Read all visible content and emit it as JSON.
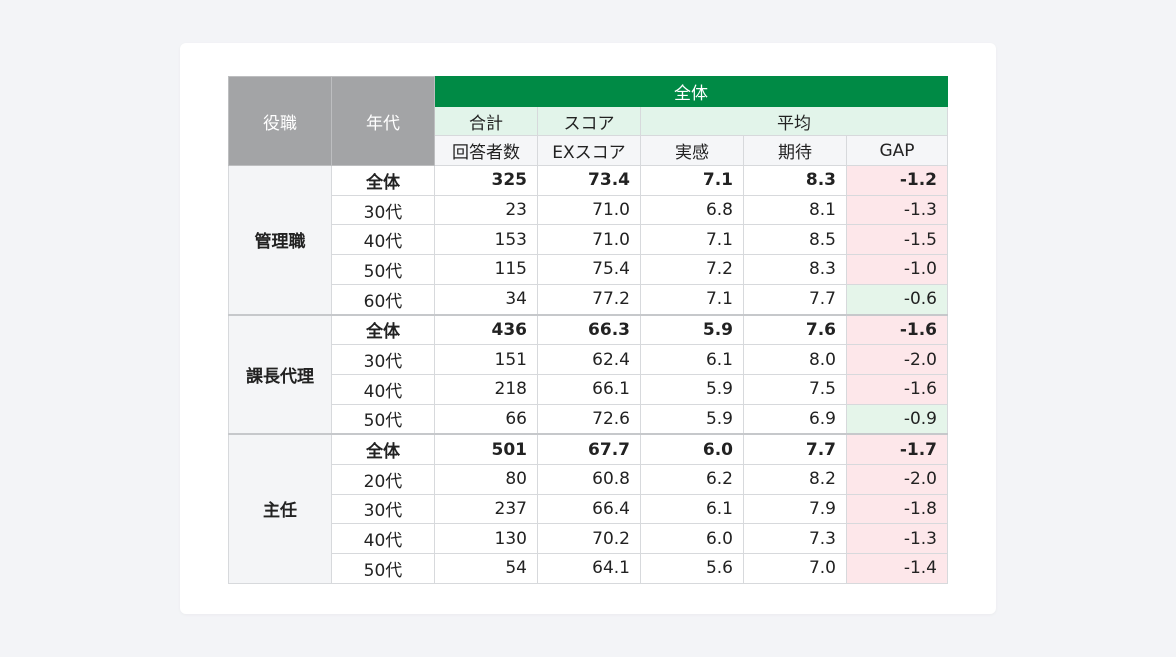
{
  "header": {
    "role": "役職",
    "age": "年代",
    "overall": "全体",
    "total_top": "合計",
    "total_bottom": "回答者数",
    "score_top": "スコア",
    "score_bottom": "EXスコア",
    "avg_top": "平均",
    "actual": "実感",
    "expect": "期待",
    "gap": "GAP"
  },
  "groups": [
    {
      "role": "管理職",
      "rows": [
        {
          "age": "全体",
          "count": "325",
          "ex": "73.4",
          "actual": "7.1",
          "expect": "8.3",
          "gap": "-1.2",
          "total": true
        },
        {
          "age": "30代",
          "count": "23",
          "ex": "71.0",
          "actual": "6.8",
          "expect": "8.1",
          "gap": "-1.3"
        },
        {
          "age": "40代",
          "count": "153",
          "ex": "71.0",
          "actual": "7.1",
          "expect": "8.5",
          "gap": "-1.5"
        },
        {
          "age": "50代",
          "count": "115",
          "ex": "75.4",
          "actual": "7.2",
          "expect": "8.3",
          "gap": "-1.0"
        },
        {
          "age": "60代",
          "count": "34",
          "ex": "77.2",
          "actual": "7.1",
          "expect": "7.7",
          "gap": "-0.6",
          "gapLight": true
        }
      ]
    },
    {
      "role": "課長代理",
      "rows": [
        {
          "age": "全体",
          "count": "436",
          "ex": "66.3",
          "actual": "5.9",
          "expect": "7.6",
          "gap": "-1.6",
          "total": true
        },
        {
          "age": "30代",
          "count": "151",
          "ex": "62.4",
          "actual": "6.1",
          "expect": "8.0",
          "gap": "-2.0"
        },
        {
          "age": "40代",
          "count": "218",
          "ex": "66.1",
          "actual": "5.9",
          "expect": "7.5",
          "gap": "-1.6"
        },
        {
          "age": "50代",
          "count": "66",
          "ex": "72.6",
          "actual": "5.9",
          "expect": "6.9",
          "gap": "-0.9",
          "gapLight": true
        }
      ]
    },
    {
      "role": "主任",
      "rows": [
        {
          "age": "全体",
          "count": "501",
          "ex": "67.7",
          "actual": "6.0",
          "expect": "7.7",
          "gap": "-1.7",
          "total": true
        },
        {
          "age": "20代",
          "count": "80",
          "ex": "60.8",
          "actual": "6.2",
          "expect": "8.2",
          "gap": "-2.0"
        },
        {
          "age": "30代",
          "count": "237",
          "ex": "66.4",
          "actual": "6.1",
          "expect": "7.9",
          "gap": "-1.8"
        },
        {
          "age": "40代",
          "count": "130",
          "ex": "70.2",
          "actual": "6.0",
          "expect": "7.3",
          "gap": "-1.3"
        },
        {
          "age": "50代",
          "count": "54",
          "ex": "64.1",
          "actual": "5.6",
          "expect": "7.0",
          "gap": "-1.4"
        }
      ]
    }
  ],
  "colors": {
    "header_green": "#008a45",
    "header_gray": "#a3a4a6",
    "gap_negative": "#fde7ea",
    "gap_mild": "#e5f5ea"
  }
}
